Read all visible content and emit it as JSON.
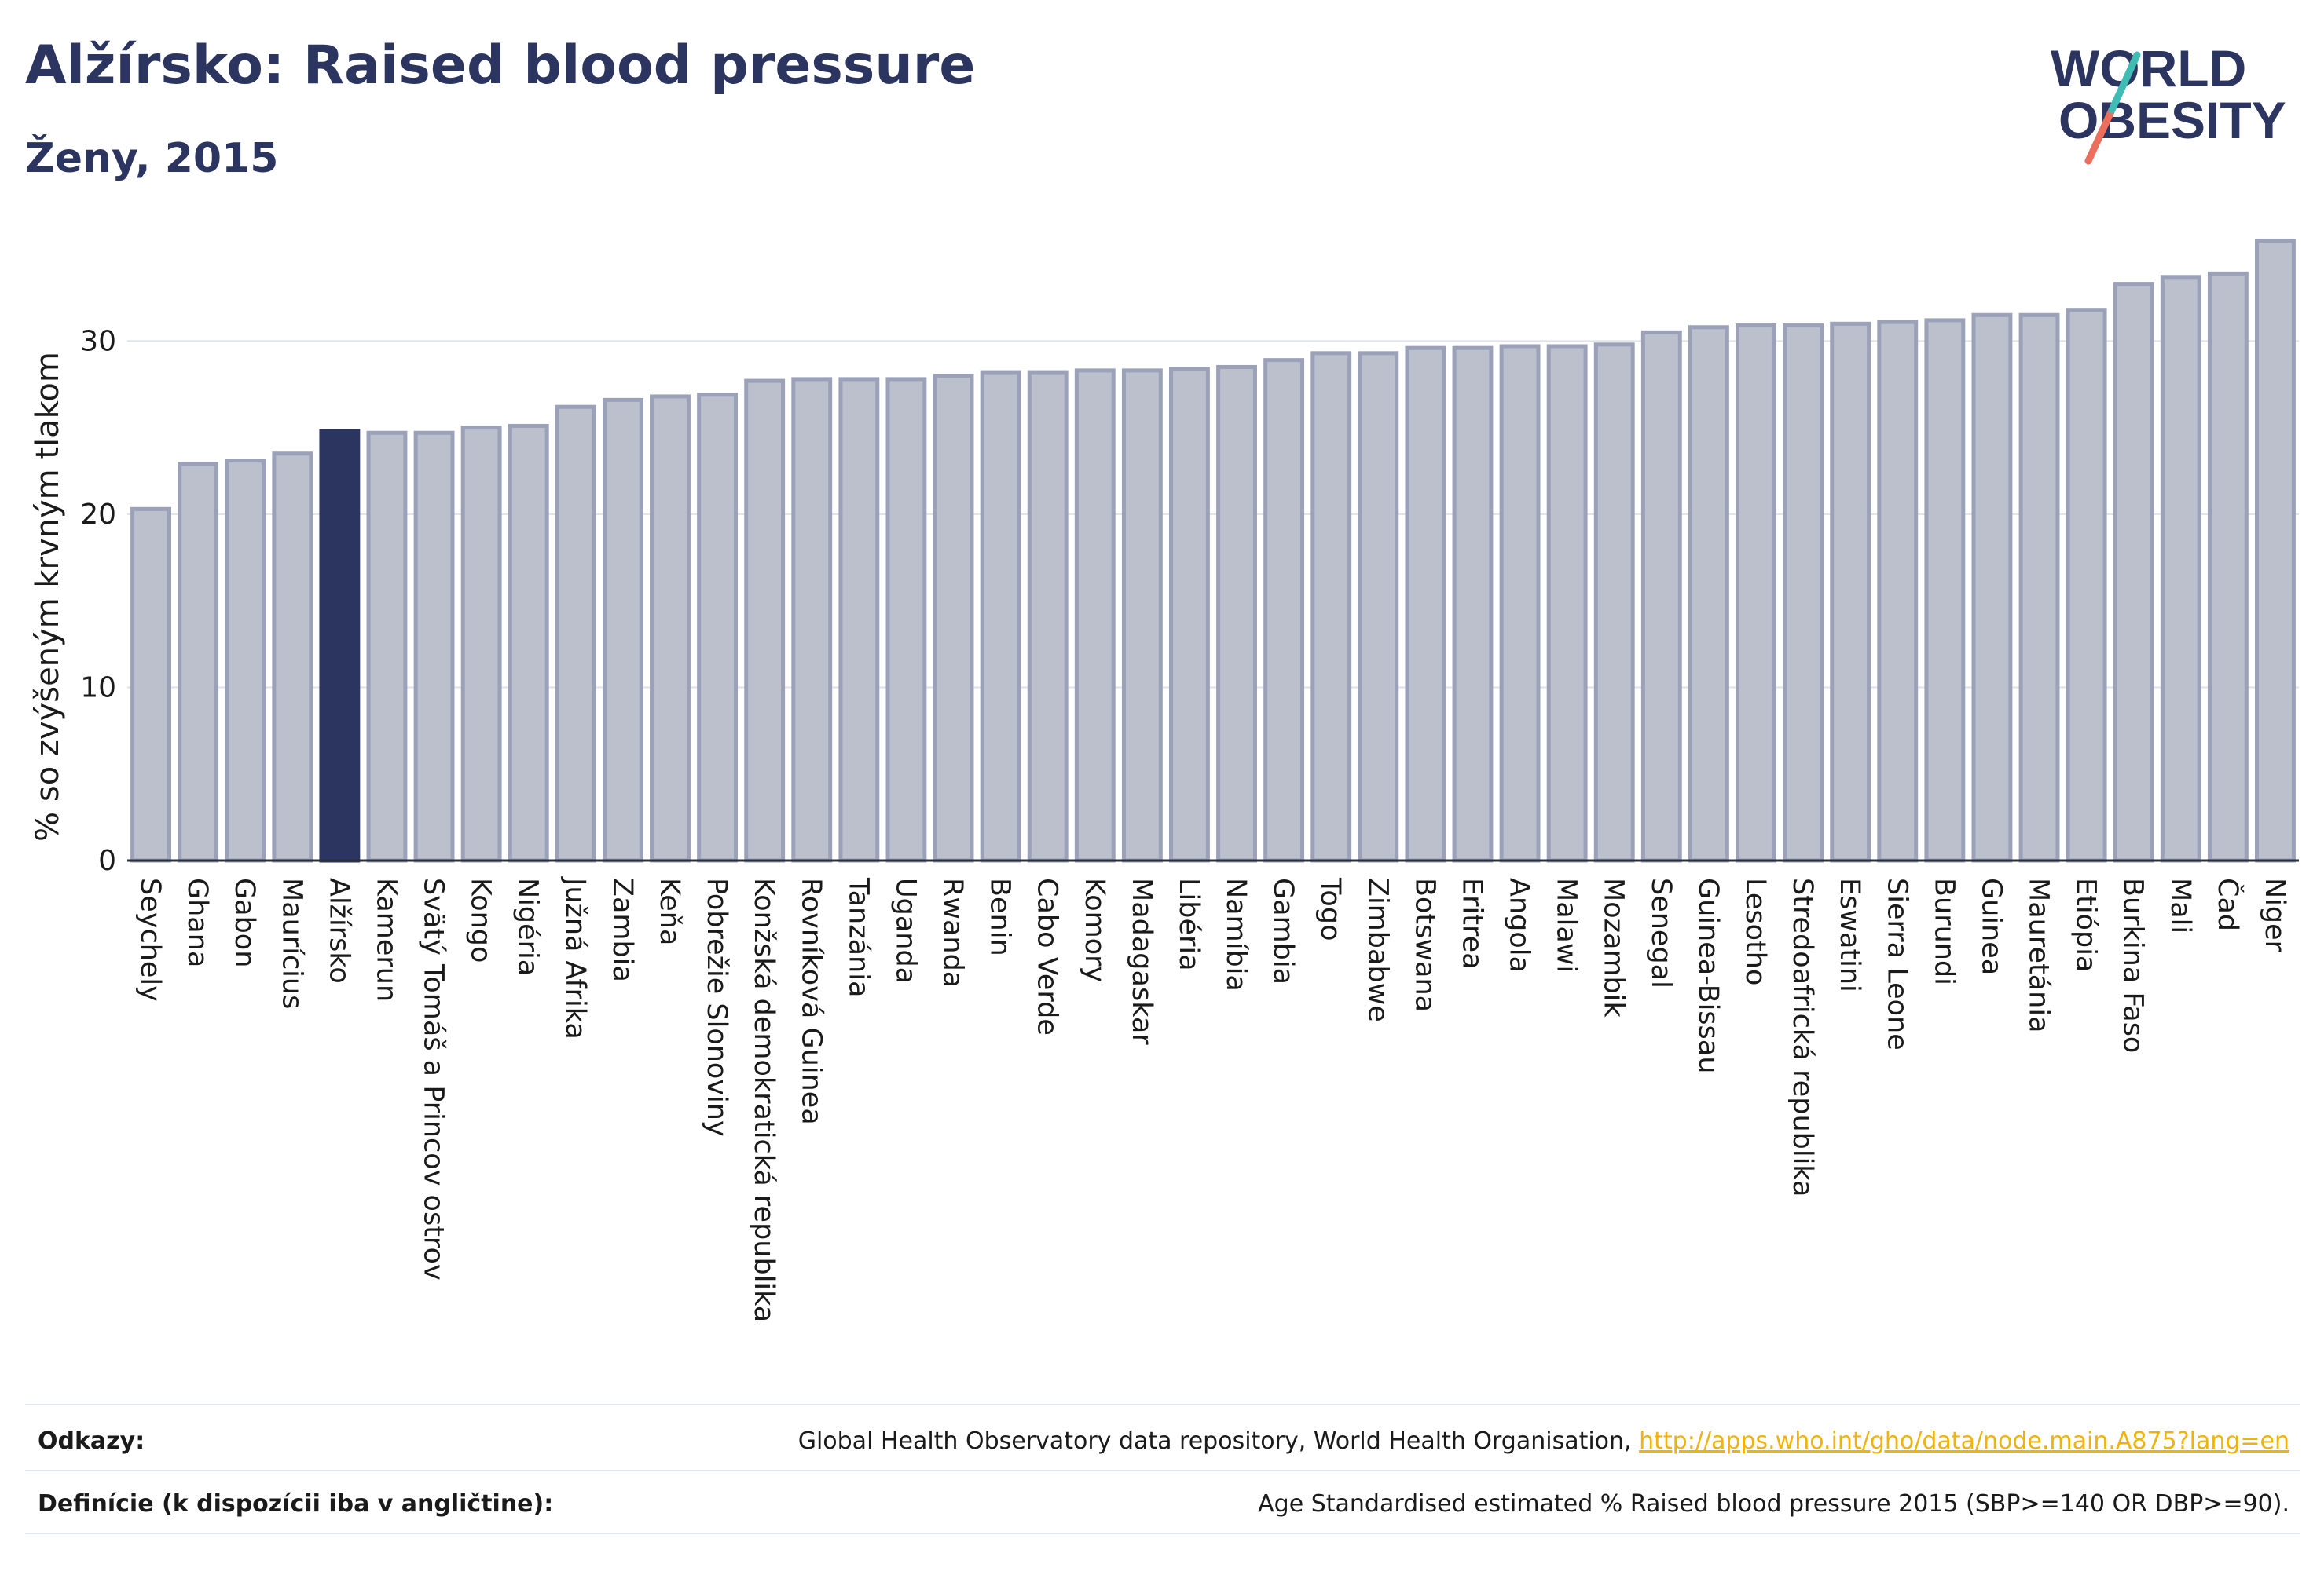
{
  "header": {
    "title": "Alžírsko: Raised blood pressure",
    "subtitle": "Ženy, 2015"
  },
  "logo": {
    "line1": "WORLD",
    "line2": "OBESITY",
    "colors": {
      "text": "#2b3560",
      "slash_teal": "#3fbcb4",
      "slash_coral": "#ec6f5e"
    }
  },
  "colors": {
    "bar_default": "#bcc0cd",
    "bar_default_stroke": "#9aa1b8",
    "bar_highlight": "#2b3560",
    "grid": "#dfe2ea",
    "axis": "#2b2f3a"
  },
  "chart_data": {
    "type": "bar",
    "ylabel": "% so zvýšeným krvným tlakom",
    "xlabel": "",
    "ylim": [
      0,
      37
    ],
    "yticks": [
      0,
      10,
      20,
      30
    ],
    "grid": true,
    "highlight": "Alžírsko",
    "categories": [
      "Seychely",
      "Ghana",
      "Gabon",
      "Maurícius",
      "Alžírsko",
      "Kamerun",
      "Svätý Tomáš a Princov ostrov",
      "Kongo",
      "Nigéria",
      "Južná Afrika",
      "Zambia",
      "Keňa",
      "Pobrežie Slonoviny",
      "Konžská demokratická republika",
      "Rovníková Guinea",
      "Tanzánia",
      "Uganda",
      "Rwanda",
      "Benin",
      "Cabo Verde",
      "Komory",
      "Madagaskar",
      "Libéria",
      "Namíbia",
      "Gambia",
      "Togo",
      "Zimbabwe",
      "Botswana",
      "Eritrea",
      "Angola",
      "Malawi",
      "Mozambik",
      "Senegal",
      "Guinea-Bissau",
      "Lesotho",
      "Stredoafrická republika",
      "Eswatini",
      "Sierra Leone",
      "Burundi",
      "Guinea",
      "Mauretánia",
      "Etiópia",
      "Burkina Faso",
      "Mali",
      "Čad",
      "Niger"
    ],
    "values": [
      20.3,
      22.9,
      23.1,
      23.5,
      24.8,
      24.7,
      24.7,
      25.0,
      25.1,
      26.2,
      26.6,
      26.8,
      26.9,
      27.7,
      27.8,
      27.8,
      27.8,
      28.0,
      28.2,
      28.2,
      28.3,
      28.3,
      28.4,
      28.5,
      28.9,
      29.3,
      29.3,
      29.6,
      29.6,
      29.7,
      29.7,
      29.8,
      30.5,
      30.8,
      30.9,
      30.9,
      31.0,
      31.1,
      31.2,
      31.5,
      31.5,
      31.8,
      33.3,
      33.7,
      33.9,
      35.8
    ]
  },
  "footer": {
    "refs_label": "Odkazy:",
    "refs_text": "Global Health Observatory data repository, World Health Organisation,",
    "refs_link": "http://apps.who.int/gho/data/node.main.A875?lang=en",
    "def_label": "Definície (k dispozícii iba v angličtine):",
    "def_text": "Age Standardised estimated % Raised blood pressure 2015 (SBP>=140 OR DBP>=90)."
  }
}
